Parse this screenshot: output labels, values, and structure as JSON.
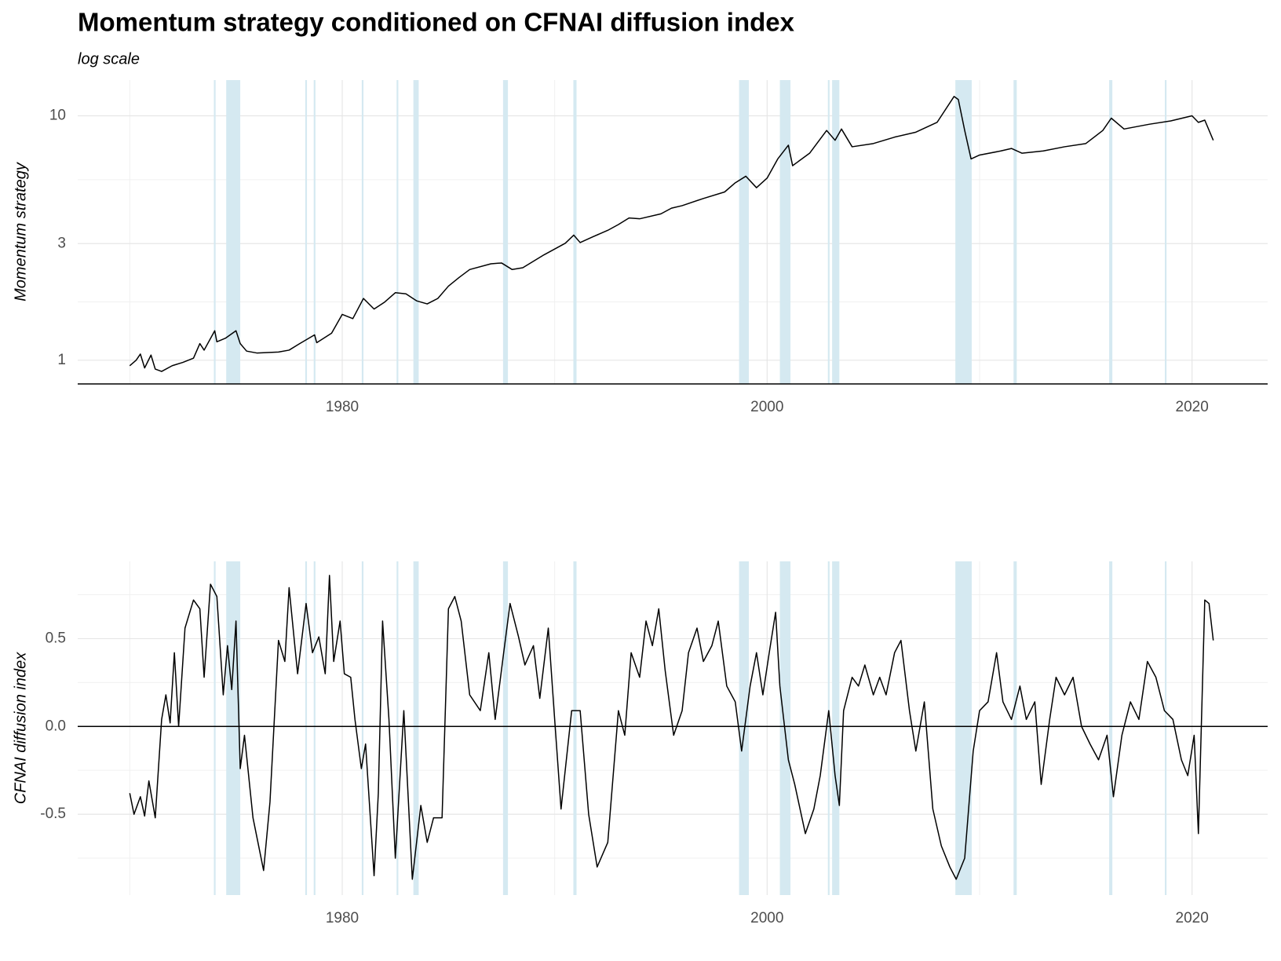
{
  "chart_data": [
    {
      "type": "line",
      "title": "Momentum strategy conditioned on CFNAI diffusion index",
      "subtitle": "log scale",
      "y_label": "Momentum strategy",
      "log_scale": true,
      "grid": true,
      "xlim": [
        1967.55,
        2023.56
      ],
      "xticks": [
        1980,
        2000,
        2020
      ],
      "ylim": [
        0.8,
        14
      ],
      "yticks": [
        1,
        3,
        10
      ],
      "shade_color": "#d5e9f1",
      "shaded": [
        [
          1973.96,
          1974.04
        ],
        [
          1974.54,
          1975.2
        ],
        [
          1978.26,
          1978.34
        ],
        [
          1978.66,
          1978.74
        ],
        [
          1980.92,
          1981.0
        ],
        [
          1982.56,
          1982.64
        ],
        [
          1983.35,
          1983.6
        ],
        [
          1987.57,
          1987.8
        ],
        [
          1990.88,
          1991.03
        ],
        [
          1998.68,
          1999.14
        ],
        [
          2000.6,
          2001.1
        ],
        [
          2002.86,
          2002.94
        ],
        [
          2003.06,
          2003.4
        ],
        [
          2008.86,
          2009.63
        ],
        [
          2011.6,
          2011.75
        ],
        [
          2016.1,
          2016.25
        ],
        [
          2018.72,
          2018.8
        ]
      ],
      "x": [
        1970.0,
        1970.3,
        1970.5,
        1970.7,
        1971.0,
        1971.2,
        1971.5,
        1972.0,
        1972.5,
        1973.0,
        1973.3,
        1973.5,
        1974.0,
        1974.1,
        1974.5,
        1975.0,
        1975.2,
        1975.5,
        1976.0,
        1977.0,
        1977.5,
        1978.0,
        1978.7,
        1978.8,
        1979.5,
        1980.0,
        1980.5,
        1981.0,
        1981.5,
        1982.0,
        1982.5,
        1983.0,
        1983.5,
        1984.0,
        1984.5,
        1985.0,
        1985.5,
        1986.0,
        1987.0,
        1987.5,
        1988.0,
        1988.5,
        1989.0,
        1989.5,
        1990.0,
        1990.5,
        1990.9,
        1991.2,
        1991.8,
        1992.5,
        1993.0,
        1993.5,
        1994.0,
        1995.0,
        1995.5,
        1996.0,
        1997.0,
        1998.0,
        1998.5,
        1999.0,
        1999.5,
        2000.0,
        2000.5,
        2001.0,
        2001.2,
        2002.0,
        2002.8,
        2003.2,
        2003.5,
        2004.0,
        2005.0,
        2006.0,
        2007.0,
        2008.0,
        2008.8,
        2009.0,
        2009.3,
        2009.6,
        2010.0,
        2011.0,
        2011.5,
        2012.0,
        2013.0,
        2014.0,
        2015.0,
        2015.8,
        2016.2,
        2016.8,
        2018.0,
        2019.0,
        2020.0,
        2020.3,
        2020.6,
        2021.0
      ],
      "series": [
        {
          "color": "#000000",
          "values": [
            0.95,
            1.0,
            1.06,
            0.93,
            1.05,
            0.92,
            0.9,
            0.95,
            0.98,
            1.02,
            1.17,
            1.1,
            1.32,
            1.19,
            1.23,
            1.32,
            1.17,
            1.09,
            1.07,
            1.08,
            1.1,
            1.17,
            1.27,
            1.18,
            1.29,
            1.54,
            1.48,
            1.79,
            1.62,
            1.73,
            1.89,
            1.87,
            1.75,
            1.7,
            1.79,
            2.01,
            2.18,
            2.35,
            2.48,
            2.5,
            2.35,
            2.39,
            2.54,
            2.7,
            2.85,
            3.01,
            3.25,
            3.03,
            3.2,
            3.4,
            3.59,
            3.82,
            3.79,
            3.97,
            4.19,
            4.29,
            4.59,
            4.88,
            5.32,
            5.66,
            5.08,
            5.56,
            6.66,
            7.58,
            6.25,
            7.03,
            8.71,
            7.94,
            8.83,
            7.47,
            7.7,
            8.18,
            8.57,
            9.4,
            12.0,
            11.66,
            8.71,
            6.66,
            6.91,
            7.18,
            7.35,
            7.03,
            7.18,
            7.47,
            7.7,
            8.71,
            9.78,
            8.83,
            9.24,
            9.53,
            10.0,
            9.4,
            9.6,
            7.94
          ]
        }
      ]
    },
    {
      "type": "line",
      "y_label": "CFNAI diffusion index",
      "log_scale": false,
      "grid": true,
      "xlim": [
        1967.55,
        2023.56
      ],
      "xticks": [
        1980,
        2000,
        2020
      ],
      "ylim": [
        -0.96,
        0.94
      ],
      "yticks": [
        -0.5,
        {
          "value": 0,
          "label": "0.0"
        },
        0.5
      ],
      "shade_color": "#d5e9f1",
      "shaded": [
        [
          1973.96,
          1974.04
        ],
        [
          1974.54,
          1975.2
        ],
        [
          1978.26,
          1978.34
        ],
        [
          1978.66,
          1978.74
        ],
        [
          1980.92,
          1981.0
        ],
        [
          1982.56,
          1982.64
        ],
        [
          1983.35,
          1983.6
        ],
        [
          1987.57,
          1987.8
        ],
        [
          1990.88,
          1991.03
        ],
        [
          1998.68,
          1999.14
        ],
        [
          2000.6,
          2001.1
        ],
        [
          2002.86,
          2002.94
        ],
        [
          2003.06,
          2003.4
        ],
        [
          2008.86,
          2009.63
        ],
        [
          2011.6,
          2011.75
        ],
        [
          2016.1,
          2016.25
        ],
        [
          2018.72,
          2018.8
        ]
      ],
      "x": [
        1970.0,
        1970.2,
        1970.5,
        1970.7,
        1970.9,
        1971.2,
        1971.5,
        1971.7,
        1971.9,
        1972.1,
        1972.3,
        1972.6,
        1973.0,
        1973.3,
        1973.5,
        1973.8,
        1974.1,
        1974.4,
        1974.6,
        1974.8,
        1975.0,
        1975.2,
        1975.4,
        1975.8,
        1976.3,
        1976.6,
        1977.0,
        1977.3,
        1977.5,
        1977.9,
        1978.3,
        1978.6,
        1978.9,
        1979.2,
        1979.4,
        1979.6,
        1979.9,
        1980.1,
        1980.4,
        1980.6,
        1980.9,
        1981.1,
        1981.5,
        1981.7,
        1981.9,
        1982.2,
        1982.5,
        1982.9,
        1983.3,
        1983.7,
        1984.0,
        1984.3,
        1984.7,
        1985.0,
        1985.3,
        1985.6,
        1986.0,
        1986.5,
        1986.9,
        1987.2,
        1987.6,
        1987.9,
        1988.3,
        1988.6,
        1989.0,
        1989.3,
        1989.7,
        1990.0,
        1990.3,
        1990.8,
        1991.2,
        1991.6,
        1992.0,
        1992.5,
        1993.0,
        1993.3,
        1993.6,
        1994.0,
        1994.3,
        1994.6,
        1994.9,
        1995.2,
        1995.6,
        1996.0,
        1996.3,
        1996.7,
        1997.0,
        1997.4,
        1997.7,
        1998.1,
        1998.5,
        1998.8,
        1999.2,
        1999.5,
        1999.8,
        2000.1,
        2000.4,
        2000.6,
        2001.0,
        2001.3,
        2001.8,
        2002.2,
        2002.5,
        2002.9,
        2003.2,
        2003.4,
        2003.6,
        2004.0,
        2004.3,
        2004.6,
        2005.0,
        2005.3,
        2005.6,
        2006.0,
        2006.3,
        2006.7,
        2007.0,
        2007.4,
        2007.8,
        2008.2,
        2008.6,
        2008.9,
        2009.3,
        2009.7,
        2010.0,
        2010.4,
        2010.8,
        2011.1,
        2011.5,
        2011.9,
        2012.2,
        2012.6,
        2012.9,
        2013.3,
        2013.6,
        2014.0,
        2014.4,
        2014.8,
        2015.2,
        2015.6,
        2016.0,
        2016.3,
        2016.7,
        2017.1,
        2017.5,
        2017.9,
        2018.3,
        2018.7,
        2019.1,
        2019.5,
        2019.8,
        2020.1,
        2020.3,
        2020.6,
        2020.8,
        2021.0
      ],
      "series": [
        {
          "color": "#000000",
          "values": [
            -0.38,
            -0.5,
            -0.4,
            -0.51,
            -0.31,
            -0.52,
            0.04,
            0.18,
            0.02,
            0.42,
            0.0,
            0.56,
            0.72,
            0.67,
            0.28,
            0.81,
            0.74,
            0.18,
            0.46,
            0.21,
            0.6,
            -0.24,
            -0.05,
            -0.52,
            -0.82,
            -0.43,
            0.49,
            0.37,
            0.79,
            0.3,
            0.7,
            0.42,
            0.51,
            0.3,
            0.86,
            0.37,
            0.6,
            0.3,
            0.28,
            0.04,
            -0.24,
            -0.1,
            -0.85,
            -0.38,
            0.6,
            0.04,
            -0.75,
            0.09,
            -0.87,
            -0.45,
            -0.66,
            -0.52,
            -0.52,
            0.67,
            0.74,
            0.6,
            0.18,
            0.09,
            0.42,
            0.04,
            0.42,
            0.7,
            0.51,
            0.35,
            0.46,
            0.16,
            0.56,
            0.04,
            -0.47,
            0.09,
            0.09,
            -0.5,
            -0.8,
            -0.66,
            0.09,
            -0.05,
            0.42,
            0.28,
            0.6,
            0.46,
            0.67,
            0.32,
            -0.05,
            0.09,
            0.42,
            0.56,
            0.37,
            0.46,
            0.6,
            0.23,
            0.14,
            -0.14,
            0.23,
            0.42,
            0.18,
            0.42,
            0.65,
            0.23,
            -0.19,
            -0.33,
            -0.61,
            -0.47,
            -0.28,
            0.09,
            -0.28,
            -0.45,
            0.09,
            0.28,
            0.23,
            0.35,
            0.18,
            0.28,
            0.18,
            0.42,
            0.49,
            0.09,
            -0.14,
            0.14,
            -0.47,
            -0.68,
            -0.8,
            -0.87,
            -0.75,
            -0.14,
            0.09,
            0.14,
            0.42,
            0.14,
            0.04,
            0.23,
            0.04,
            0.14,
            -0.33,
            0.04,
            0.28,
            0.18,
            0.28,
            0.0,
            -0.1,
            -0.19,
            -0.05,
            -0.4,
            -0.05,
            0.14,
            0.04,
            0.37,
            0.28,
            0.09,
            0.04,
            -0.19,
            -0.28,
            -0.05,
            -0.61,
            0.72,
            0.7,
            0.49
          ]
        }
      ]
    }
  ]
}
